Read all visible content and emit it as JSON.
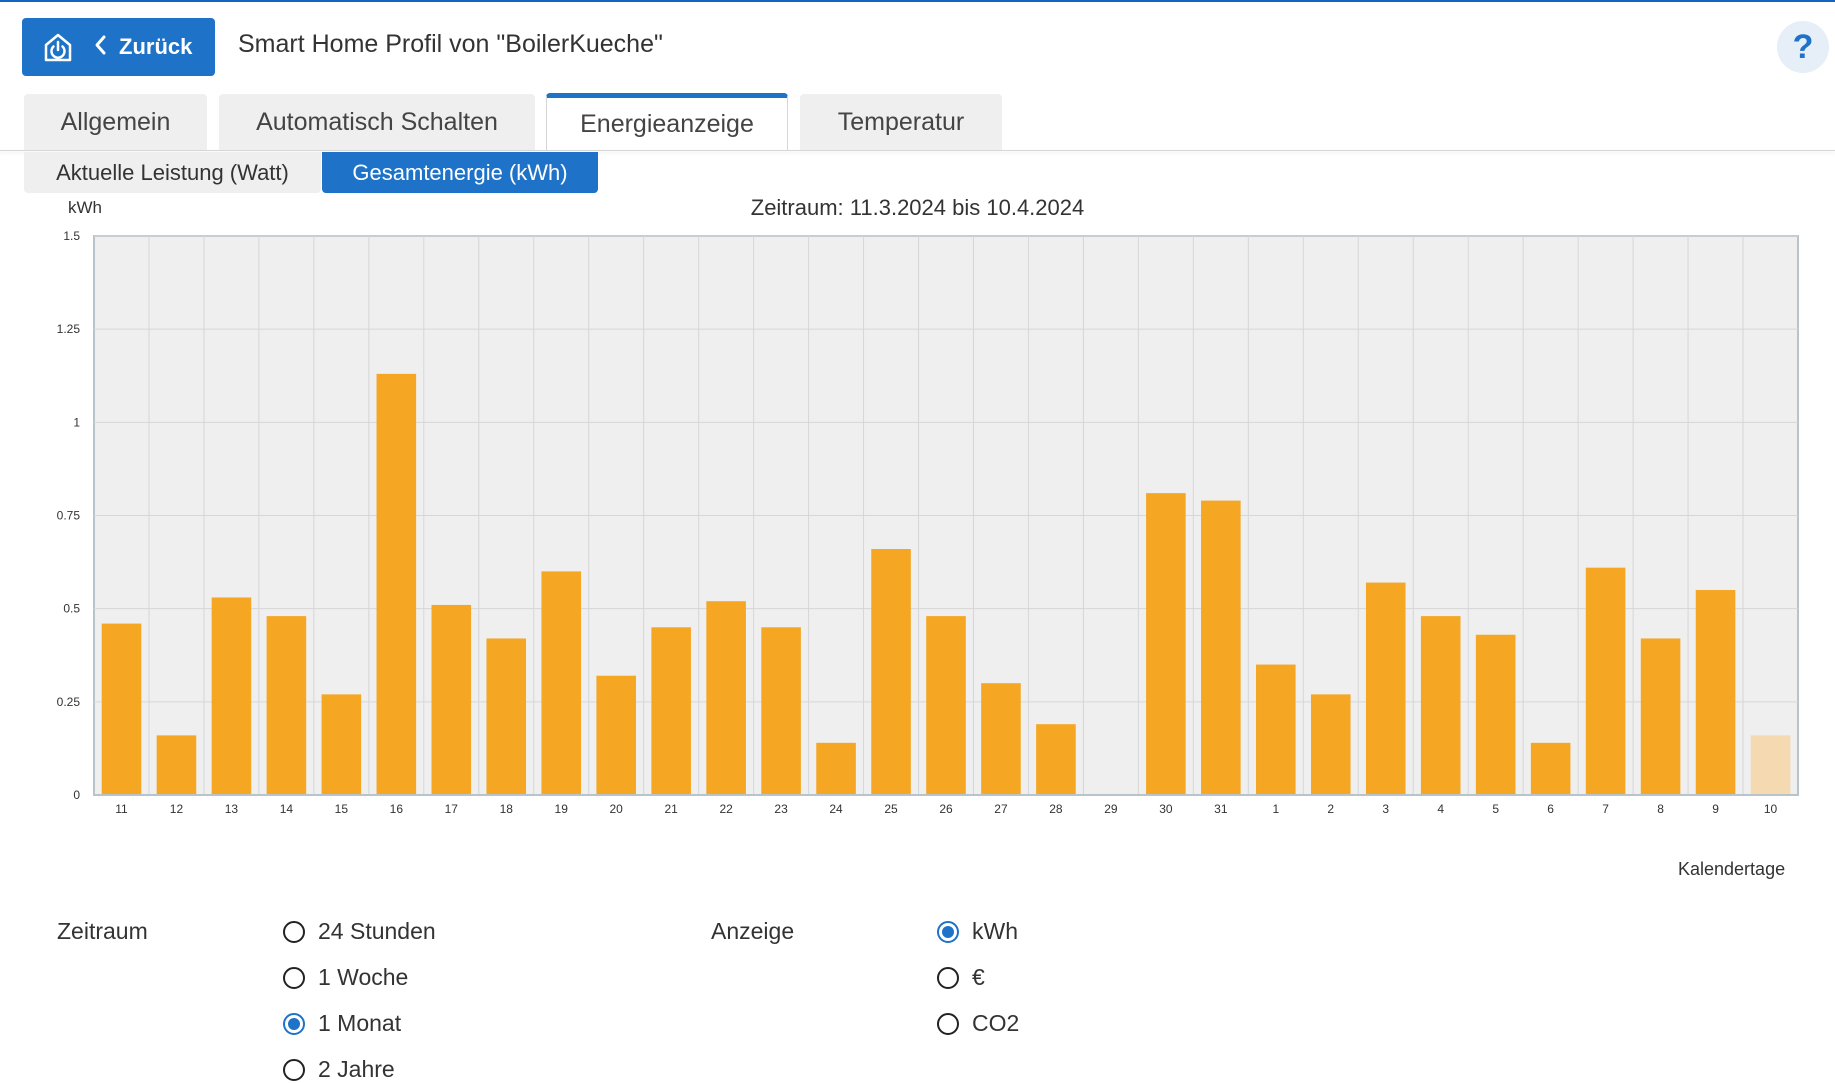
{
  "header": {
    "back_label": "Zurück",
    "title": "Smart Home Profil von \"BoilerKueche\"",
    "help_label": "?"
  },
  "tabs": [
    {
      "label": "Allgemein",
      "active": false
    },
    {
      "label": "Automatisch Schalten",
      "active": false
    },
    {
      "label": "Energieanzeige",
      "active": true
    },
    {
      "label": "Temperatur",
      "active": false
    }
  ],
  "subtabs": [
    {
      "label": "Aktuelle Leistung (Watt)",
      "active": false
    },
    {
      "label": "Gesamtenergie (kWh)",
      "active": true
    }
  ],
  "chart_data": {
    "type": "bar",
    "title": "Zeitraum: 11.3.2024 bis 10.4.2024",
    "ylabel": "kWh",
    "xlabel": "Kalendertage",
    "ylim": [
      0,
      1.5
    ],
    "yticks": [
      "1.5",
      "1.25",
      "1",
      "0.75",
      "0.5",
      "0.25",
      "0"
    ],
    "grid": true,
    "colors": {
      "bar": "#f5a623",
      "bar_current": "#f5d9b0",
      "plot_bg": "#efefef",
      "grid": "#d6d6d6"
    },
    "categories": [
      "11",
      "12",
      "13",
      "14",
      "15",
      "16",
      "17",
      "18",
      "19",
      "20",
      "21",
      "22",
      "23",
      "24",
      "25",
      "26",
      "27",
      "28",
      "29",
      "30",
      "31",
      "1",
      "2",
      "3",
      "4",
      "5",
      "6",
      "7",
      "8",
      "9",
      "10"
    ],
    "values": [
      0.46,
      0.16,
      0.53,
      0.48,
      0.27,
      1.13,
      0.51,
      0.42,
      0.6,
      0.32,
      0.45,
      0.52,
      0.45,
      0.14,
      0.66,
      0.48,
      0.3,
      0.19,
      0,
      0.81,
      0.79,
      0.35,
      0.27,
      0.57,
      0.48,
      0.43,
      0.14,
      0.61,
      0.42,
      0.55,
      0.16
    ],
    "current_index": 30
  },
  "options": {
    "zeitraum_label": "Zeitraum",
    "zeitraum": [
      {
        "label": "24 Stunden",
        "checked": false
      },
      {
        "label": "1 Woche",
        "checked": false
      },
      {
        "label": "1 Monat",
        "checked": true
      },
      {
        "label": "2 Jahre",
        "checked": false
      }
    ],
    "anzeige_label": "Anzeige",
    "anzeige": [
      {
        "label": "kWh",
        "checked": true
      },
      {
        "label": "€",
        "checked": false
      },
      {
        "label": "CO2",
        "checked": false
      }
    ]
  }
}
